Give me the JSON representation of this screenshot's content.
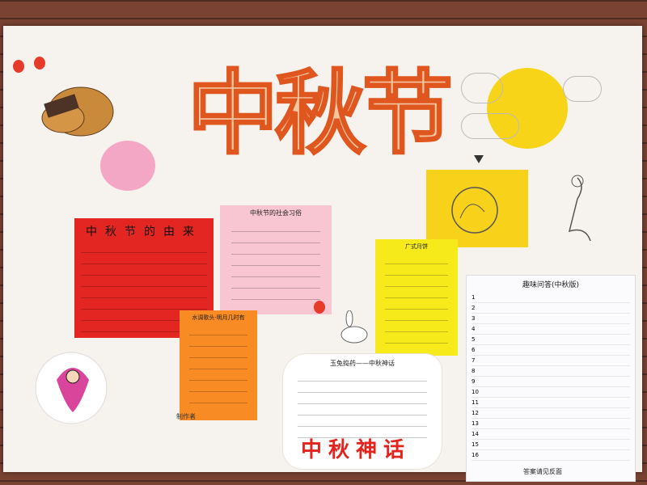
{
  "title": "中秋节",
  "red_card": {
    "heading": "中秋节的由来"
  },
  "pink_card": {
    "heading": "中秋节的社会习俗"
  },
  "orange_card": {
    "heading": "水调歌头·明月几时有"
  },
  "yellow_card": {
    "heading": "广式月饼"
  },
  "qa_card": {
    "heading": "趣味问答(中秋版)",
    "items": [
      "1",
      "2",
      "3",
      "4",
      "5",
      "6",
      "7",
      "8",
      "9",
      "10",
      "11",
      "12",
      "13",
      "14",
      "15",
      "16"
    ],
    "footer": "答案请见反面"
  },
  "bubble": {
    "heading": "玉兔捣药——中秋神话"
  },
  "myth_title": "中秋神话",
  "authors": "制作者"
}
